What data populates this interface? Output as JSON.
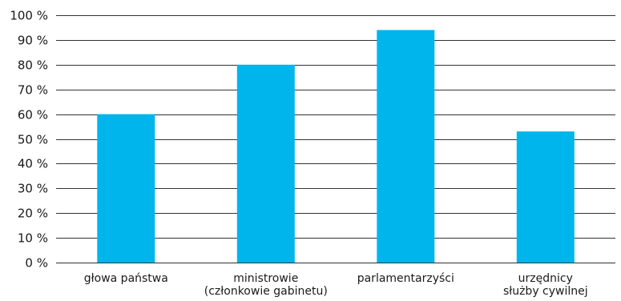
{
  "chart_data": {
    "type": "bar",
    "categories": [
      [
        "głowa państwa"
      ],
      [
        "ministrowie",
        "(członkowie gabinetu)"
      ],
      [
        "parlamentarzyści"
      ],
      [
        "urzędnicy",
        "służby cywilnej"
      ]
    ],
    "values": [
      60,
      80,
      94,
      53
    ],
    "ylim": [
      0,
      100
    ],
    "yticks": [
      0,
      10,
      20,
      30,
      40,
      50,
      60,
      70,
      80,
      90,
      100
    ],
    "ytick_labels": [
      "0 %",
      "10 %",
      "20 %",
      "30 %",
      "40 %",
      "50 %",
      "60 %",
      "70 %",
      "80 %",
      "90 %",
      "100 %"
    ],
    "title": "",
    "xlabel": "",
    "ylabel": "",
    "grid": true,
    "legend": "none",
    "colors": {
      "bar": "#00B5EC",
      "grid": "#333333"
    }
  }
}
